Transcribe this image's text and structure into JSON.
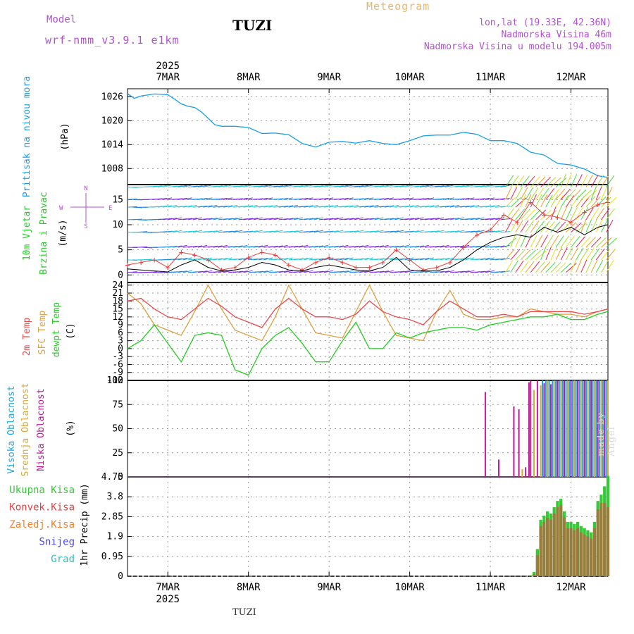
{
  "header": {
    "model_label": "Model",
    "model_name": "wrf-nmm_v3.9.1 e1km",
    "station": "TUZI",
    "product": "Meteogram",
    "lonlat": "lon,lat (19.33E, 42.36N)",
    "elevation": "Nadmorska Visina 46m",
    "elevation_model": "Nadmorska Visina u modelu 194.005m"
  },
  "footer": {
    "station": "TUZI",
    "credit": "made by Angel"
  },
  "colors": {
    "pressure": "#1aa0e8",
    "temp2m": "#e84a4a",
    "sfc": "#e0a040",
    "dewpt": "#22cc22",
    "high": "#18a8e8",
    "mid": "#d8a838",
    "low": "#c0189a",
    "precip_total": "#38c838",
    "precip_conv": "#e84040",
    "frz": "#f08030",
    "snow": "#4848e8",
    "grad": "#30c0c0",
    "wind_speed": "#000000",
    "gust": "#e84040"
  },
  "time_axis": {
    "year": "2025",
    "labels": [
      "7MAR",
      "8MAR",
      "9MAR",
      "10MAR",
      "11MAR",
      "12MAR"
    ],
    "start_hour": -12,
    "end_hour": 131
  },
  "chart_data": [
    {
      "id": "pressure",
      "type": "line",
      "ylabel": [
        "Pritisak na nivou mora",
        "(hPa)"
      ],
      "yticks": [
        "1008",
        "1014",
        "1020",
        "1026"
      ],
      "ylim": [
        1004,
        1028
      ],
      "x_hours": [
        -12,
        -10,
        -8,
        -4,
        0,
        2,
        4,
        6,
        8,
        10,
        14,
        16,
        20,
        24,
        28,
        32,
        36,
        40,
        44,
        48,
        52,
        56,
        60,
        64,
        68,
        72,
        76,
        80,
        84,
        88,
        92,
        96,
        100,
        104,
        108,
        112,
        116,
        120,
        124,
        128,
        131
      ],
      "y_hpa": [
        1026.8,
        1025.6,
        1026.2,
        1026.7,
        1026.5,
        1025.4,
        1024.2,
        1023.6,
        1023.3,
        1022.2,
        1019.0,
        1018.6,
        1018.6,
        1018.3,
        1016.8,
        1016.9,
        1016.5,
        1014.3,
        1013.4,
        1014.6,
        1014.8,
        1014.4,
        1015.0,
        1014.3,
        1014.0,
        1015.0,
        1016.2,
        1016.4,
        1016.4,
        1017.1,
        1016.6,
        1015.0,
        1015.0,
        1014.3,
        1012.1,
        1011.4,
        1009.3,
        1008.9,
        1007.9,
        1006.2,
        1005.8
      ]
    },
    {
      "id": "wind",
      "type": "line",
      "ylabel": [
        "10m Vjetar",
        "Brzina i Pravac",
        "(m/s)"
      ],
      "compass": [
        "N",
        "E",
        "W",
        "S"
      ],
      "yticks": [
        "0",
        "5",
        "10",
        "15"
      ],
      "ylim": [
        -1.5,
        18
      ],
      "x_hours": [
        -12,
        -8,
        -4,
        0,
        4,
        8,
        12,
        16,
        20,
        24,
        28,
        32,
        36,
        40,
        44,
        48,
        52,
        56,
        60,
        64,
        68,
        72,
        76,
        80,
        84,
        88,
        92,
        96,
        100,
        104,
        108,
        112,
        116,
        120,
        124,
        128,
        131
      ],
      "speed": [
        1.2,
        1.0,
        0.8,
        0.6,
        2.0,
        3.0,
        1.5,
        0.8,
        1.0,
        1.5,
        2.5,
        2.0,
        1.0,
        0.8,
        1.5,
        2.0,
        1.5,
        1.0,
        0.8,
        1.5,
        3.5,
        1.0,
        0.8,
        0.8,
        1.5,
        3.0,
        5.0,
        6.5,
        7.5,
        8.0,
        7.5,
        9.5,
        8.5,
        9.5,
        8.0,
        9.5,
        10.0
      ],
      "gust": [
        2.0,
        2.5,
        3.0,
        1.5,
        4.5,
        4.0,
        3.0,
        1.0,
        1.5,
        3.5,
        4.5,
        4.0,
        2.0,
        1.0,
        2.5,
        3.5,
        2.5,
        1.5,
        1.5,
        2.5,
        5.0,
        3.0,
        1.0,
        1.5,
        2.5,
        5.5,
        8.0,
        9.0,
        12.0,
        10.5,
        14.5,
        12.0,
        11.5,
        10.5,
        12.5,
        14.0,
        14.5
      ]
    },
    {
      "id": "temperature",
      "type": "line",
      "ylabel": [
        "2m Temp",
        "SFC Temp",
        "dewpt Temp",
        "(C)"
      ],
      "yticks": [
        "-12",
        "-9",
        "-6",
        "-3",
        "0",
        "3",
        "6",
        "9",
        "12",
        "15",
        "18",
        "21",
        "24"
      ],
      "ylim": [
        -12,
        25
      ],
      "x_hours": [
        -12,
        -8,
        -4,
        0,
        4,
        8,
        12,
        16,
        20,
        24,
        28,
        32,
        36,
        40,
        44,
        48,
        52,
        56,
        60,
        64,
        68,
        72,
        76,
        80,
        84,
        88,
        92,
        96,
        100,
        104,
        108,
        112,
        116,
        120,
        124,
        128,
        131
      ],
      "t2m": [
        18,
        19,
        15,
        12,
        11,
        15,
        19,
        16,
        12,
        10,
        8,
        15,
        19,
        15,
        12,
        12,
        11,
        13,
        18,
        14,
        12,
        11,
        9,
        14,
        18,
        15,
        12,
        12,
        13,
        12,
        14,
        14,
        14,
        14,
        13,
        14,
        15
      ],
      "sfc": [
        21,
        17,
        9,
        7,
        5,
        14,
        24,
        15,
        7,
        5,
        3,
        12,
        24,
        15,
        6,
        5,
        4,
        14,
        24,
        14,
        5,
        4,
        3,
        14,
        22,
        13,
        11,
        11,
        12,
        12,
        15,
        14,
        13,
        13,
        12,
        14,
        15
      ],
      "dewpt": [
        0,
        3,
        9,
        2,
        -5,
        5,
        6,
        5,
        -8,
        -10,
        0,
        5,
        8,
        2,
        -5,
        -5,
        3,
        10,
        0,
        0,
        6,
        4,
        6,
        7,
        8,
        8,
        7,
        9,
        10,
        11,
        12,
        12,
        13,
        11,
        11,
        13,
        14
      ]
    },
    {
      "id": "cloud",
      "type": "bar",
      "ylabel": [
        "Visoka Oblacnost",
        "Srednja Oblacnost",
        "Niska Oblacnost",
        "(%)"
      ],
      "yticks": [
        "0",
        "25",
        "50",
        "75",
        "100"
      ],
      "ylim": [
        0,
        100
      ],
      "low": [
        {
          "h": 94.5,
          "v": 88
        },
        {
          "h": 98.5,
          "v": 18
        },
        {
          "h": 103,
          "v": 73
        },
        {
          "h": 104.5,
          "v": 70
        },
        {
          "h": 106.5,
          "v": 10
        },
        {
          "h": 107.5,
          "v": 98
        },
        {
          "h": 108,
          "v": 100
        },
        {
          "h": 110,
          "v": 100
        },
        {
          "h": 112,
          "v": 97
        },
        {
          "h": 114,
          "v": 96
        },
        {
          "h": 116,
          "v": 100
        },
        {
          "h": 118,
          "v": 100
        },
        {
          "h": 120,
          "v": 100
        },
        {
          "h": 122,
          "v": 100
        },
        {
          "h": 124,
          "v": 100
        },
        {
          "h": 126,
          "v": 100
        },
        {
          "h": 128,
          "v": 100
        },
        {
          "h": 130,
          "v": 100
        }
      ],
      "mid": [
        {
          "h": 105.5,
          "v": 8
        },
        {
          "h": 109,
          "v": 90
        },
        {
          "h": 111,
          "v": 95
        },
        {
          "h": 113,
          "v": 100
        },
        {
          "h": 115,
          "v": 100
        },
        {
          "h": 117,
          "v": 100
        },
        {
          "h": 119,
          "v": 100
        },
        {
          "h": 121,
          "v": 100
        },
        {
          "h": 123,
          "v": 100
        },
        {
          "h": 125,
          "v": 100
        },
        {
          "h": 127,
          "v": 100
        },
        {
          "h": 129,
          "v": 100
        },
        {
          "h": 131,
          "v": 100
        }
      ],
      "high": [
        {
          "h": 111.5,
          "v": 100
        },
        {
          "h": 112.5,
          "v": 100
        },
        {
          "h": 113.5,
          "v": 100
        },
        {
          "h": 114.5,
          "v": 100
        },
        {
          "h": 115.5,
          "v": 100
        },
        {
          "h": 116.5,
          "v": 100
        },
        {
          "h": 117.5,
          "v": 100
        },
        {
          "h": 118.5,
          "v": 100
        },
        {
          "h": 119.5,
          "v": 100
        },
        {
          "h": 120.5,
          "v": 100
        },
        {
          "h": 121.5,
          "v": 100
        },
        {
          "h": 122.5,
          "v": 100
        },
        {
          "h": 123.5,
          "v": 100
        },
        {
          "h": 124.5,
          "v": 100
        },
        {
          "h": 125.5,
          "v": 100
        },
        {
          "h": 126.5,
          "v": 100
        },
        {
          "h": 127.5,
          "v": 100
        },
        {
          "h": 128.5,
          "v": 100
        },
        {
          "h": 129.5,
          "v": 100
        },
        {
          "h": 130.5,
          "v": 100
        }
      ]
    },
    {
      "id": "precip",
      "type": "bar",
      "ylabel": [
        "1hr Precip (mm)"
      ],
      "legend": [
        "Ukupna Kisa",
        "Konvek.Kisa",
        "Zaledj.Kisa",
        "Snijeg",
        "Grad"
      ],
      "yticks": [
        "0",
        "0.95",
        "1.9",
        "2.85",
        "3.8",
        "4.75"
      ],
      "ylim": [
        0,
        4.75
      ],
      "x_hours": [
        108,
        109,
        110,
        111,
        112,
        113,
        114,
        115,
        116,
        117,
        118,
        119,
        120,
        121,
        122,
        123,
        124,
        125,
        126,
        127,
        128,
        129,
        130,
        131
      ],
      "total": [
        0.05,
        0.2,
        1.3,
        2.7,
        2.9,
        3.1,
        3.0,
        3.3,
        3.6,
        3.7,
        3.1,
        2.6,
        2.6,
        2.5,
        2.6,
        2.4,
        2.3,
        2.2,
        2.1,
        2.6,
        3.6,
        3.9,
        4.3,
        4.8
      ],
      "convective": [
        0.0,
        0.1,
        1.0,
        2.4,
        2.6,
        2.8,
        2.7,
        3.0,
        3.3,
        3.4,
        2.8,
        2.3,
        2.3,
        2.2,
        2.3,
        2.1,
        2.0,
        1.9,
        1.8,
        2.3,
        3.2,
        3.5,
        3.5,
        3.3
      ]
    }
  ]
}
